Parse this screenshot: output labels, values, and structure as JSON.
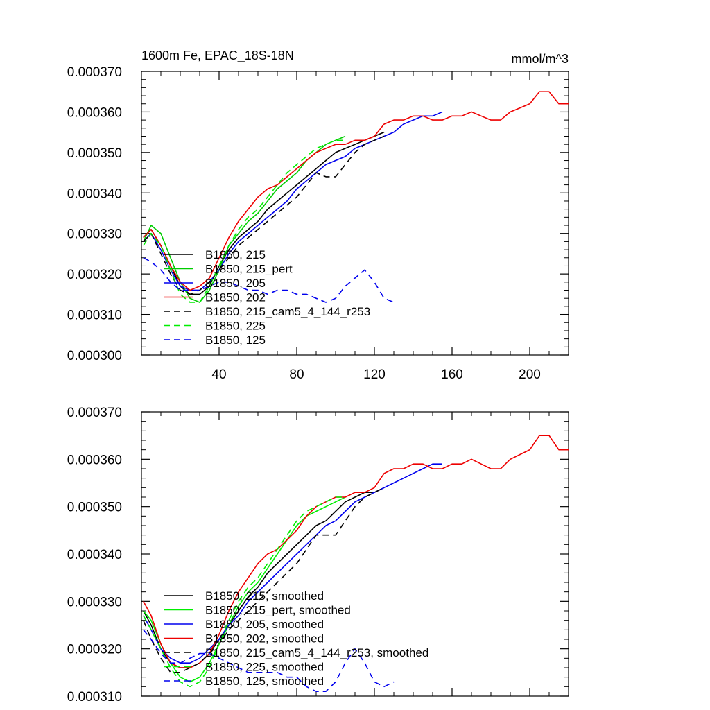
{
  "chart_data": [
    {
      "type": "line",
      "title": "1600m Fe, EPAC_18S-18N",
      "units": "mmol/m^3",
      "xlim": [
        0,
        220
      ],
      "ylim": [
        0.0003,
        0.00037
      ],
      "xticks": [
        40,
        80,
        120,
        160,
        200
      ],
      "yticks": [
        "0.000300",
        "0.000310",
        "0.000320",
        "0.000330",
        "0.000340",
        "0.000350",
        "0.000360",
        "0.000370"
      ],
      "legend_position": "bottom-left",
      "series": [
        {
          "name": "B1850, 215",
          "color": "#000000",
          "dash": "solid",
          "x": [
            1,
            5,
            10,
            15,
            20,
            25,
            30,
            35,
            40,
            45,
            50,
            55,
            60,
            65,
            70,
            75,
            80,
            85,
            90,
            95,
            100,
            105,
            110,
            115,
            120,
            125
          ],
          "y": [
            0.000329,
            0.000331,
            0.000327,
            0.000322,
            0.000317,
            0.000315,
            0.000315,
            0.000317,
            0.000322,
            0.000326,
            0.000329,
            0.000331,
            0.000333,
            0.000336,
            0.000338,
            0.00034,
            0.000342,
            0.000344,
            0.000346,
            0.000348,
            0.00035,
            0.000351,
            0.000352,
            0.000353,
            0.000354,
            0.000355
          ]
        },
        {
          "name": "B1850, 215_pert",
          "color": "#00cc00",
          "dash": "solid",
          "x": [
            1,
            5,
            10,
            15,
            20,
            25,
            30,
            35,
            40,
            45,
            50,
            55,
            60,
            65,
            70,
            75,
            80,
            85,
            90,
            95,
            100,
            105
          ],
          "y": [
            0.000328,
            0.000332,
            0.00033,
            0.000324,
            0.000318,
            0.000314,
            0.000313,
            0.000316,
            0.000321,
            0.000327,
            0.00033,
            0.000333,
            0.000335,
            0.000338,
            0.000341,
            0.000343,
            0.000345,
            0.000348,
            0.00035,
            0.000352,
            0.000353,
            0.000354
          ]
        },
        {
          "name": "B1850, 205",
          "color": "#0000ee",
          "dash": "solid",
          "x": [
            1,
            5,
            10,
            15,
            20,
            25,
            30,
            35,
            40,
            45,
            50,
            55,
            60,
            65,
            70,
            75,
            80,
            85,
            90,
            95,
            100,
            105,
            110,
            115,
            120,
            125,
            130,
            135,
            140,
            145,
            150,
            155
          ],
          "y": [
            0.000328,
            0.00033,
            0.000326,
            0.000321,
            0.000317,
            0.000316,
            0.000316,
            0.000318,
            0.000321,
            0.000325,
            0.000328,
            0.00033,
            0.000332,
            0.000334,
            0.000336,
            0.000338,
            0.000341,
            0.000343,
            0.000345,
            0.000347,
            0.000348,
            0.000349,
            0.000351,
            0.000352,
            0.000353,
            0.000354,
            0.000355,
            0.000357,
            0.000358,
            0.000359,
            0.000359,
            0.00036
          ]
        },
        {
          "name": "B1850, 202",
          "color": "#ee0000",
          "dash": "solid",
          "x": [
            1,
            5,
            10,
            15,
            20,
            25,
            30,
            35,
            40,
            45,
            50,
            55,
            60,
            65,
            70,
            75,
            80,
            85,
            90,
            95,
            100,
            105,
            110,
            115,
            120,
            125,
            130,
            135,
            140,
            145,
            150,
            155,
            160,
            165,
            170,
            175,
            180,
            185,
            190,
            195,
            200,
            205,
            210,
            215,
            220
          ],
          "y": [
            0.000329,
            0.000331,
            0.000327,
            0.000322,
            0.000318,
            0.000316,
            0.000317,
            0.000319,
            0.000324,
            0.000329,
            0.000333,
            0.000336,
            0.000339,
            0.000341,
            0.000342,
            0.000344,
            0.000346,
            0.000348,
            0.00035,
            0.000351,
            0.000352,
            0.000352,
            0.000353,
            0.000353,
            0.000354,
            0.000357,
            0.000358,
            0.000358,
            0.000359,
            0.000359,
            0.000358,
            0.000358,
            0.000359,
            0.000359,
            0.00036,
            0.000359,
            0.000358,
            0.000358,
            0.00036,
            0.000361,
            0.000362,
            0.000365,
            0.000365,
            0.000362,
            0.000362
          ]
        },
        {
          "name": "B1850, 215_cam5_4_144_r253",
          "color": "#000000",
          "dash": "dashed",
          "x": [
            1,
            5,
            10,
            15,
            20,
            25,
            30,
            35,
            40,
            45,
            50,
            55,
            60,
            65,
            70,
            75,
            80,
            85,
            90,
            95,
            100,
            105,
            110,
            115,
            120,
            125
          ],
          "y": [
            0.000328,
            0.00033,
            0.000325,
            0.00032,
            0.000316,
            0.000315,
            0.000316,
            0.000318,
            0.000321,
            0.000324,
            0.000327,
            0.000329,
            0.000331,
            0.000333,
            0.000335,
            0.000337,
            0.000339,
            0.000342,
            0.000345,
            0.000344,
            0.000344,
            0.000347,
            0.00035,
            0.000352,
            0.000353,
            0.000354
          ]
        },
        {
          "name": "B1850, 225",
          "color": "#00ee00",
          "dash": "dashed",
          "x": [
            1,
            5,
            10,
            15,
            20,
            25,
            30,
            35,
            40,
            45,
            50,
            55,
            60,
            65,
            70,
            75,
            80,
            85,
            90,
            95,
            100,
            105
          ],
          "y": [
            0.000327,
            0.00033,
            0.000327,
            0.000321,
            0.000315,
            0.000313,
            0.000313,
            0.000317,
            0.000322,
            0.000327,
            0.000331,
            0.000334,
            0.000336,
            0.000339,
            0.000342,
            0.000345,
            0.000347,
            0.000349,
            0.000351,
            0.000352,
            0.000353,
            0.000353
          ]
        },
        {
          "name": "B1850, 125",
          "color": "#0000ee",
          "dash": "dashed",
          "x": [
            1,
            5,
            10,
            15,
            20,
            25,
            30,
            35,
            40,
            45,
            50,
            55,
            60,
            65,
            70,
            75,
            80,
            85,
            90,
            95,
            100,
            105,
            110,
            115,
            120,
            125,
            130
          ],
          "y": [
            0.000324,
            0.000323,
            0.000321,
            0.000318,
            0.000316,
            0.000316,
            0.000316,
            0.000317,
            0.000318,
            0.000318,
            0.000317,
            0.000316,
            0.000316,
            0.000315,
            0.000316,
            0.000316,
            0.000315,
            0.000315,
            0.000314,
            0.000313,
            0.000314,
            0.000317,
            0.000319,
            0.000321,
            0.000318,
            0.000314,
            0.000313
          ]
        }
      ]
    },
    {
      "type": "line",
      "title": "",
      "xlim": [
        0,
        220
      ],
      "ylim": [
        0.00031,
        0.00037
      ],
      "yticks": [
        "0.000310",
        "0.000320",
        "0.000330",
        "0.000340",
        "0.000350",
        "0.000360",
        "0.000370"
      ],
      "legend_position": "bottom-left",
      "series": [
        {
          "name": "B1850, 215, smoothed",
          "color": "#000000",
          "dash": "solid",
          "x": [
            1,
            5,
            10,
            15,
            20,
            25,
            30,
            35,
            40,
            45,
            50,
            55,
            60,
            65,
            70,
            75,
            80,
            85,
            90,
            95,
            100,
            105,
            110,
            115,
            120,
            125
          ],
          "y": [
            0.000328,
            0.000325,
            0.00032,
            0.000317,
            0.000316,
            0.000316,
            0.000317,
            0.000319,
            0.000322,
            0.000325,
            0.000328,
            0.000331,
            0.000333,
            0.000336,
            0.000338,
            0.00034,
            0.000342,
            0.000344,
            0.000346,
            0.000347,
            0.000349,
            0.000351,
            0.000352,
            0.000353,
            0.000353,
            0.000354
          ]
        },
        {
          "name": "B1850, 215_pert, smoothed",
          "color": "#00ee00",
          "dash": "solid",
          "x": [
            1,
            5,
            10,
            15,
            20,
            25,
            30,
            35,
            40,
            45,
            50,
            55,
            60,
            65,
            70,
            75,
            80,
            85,
            90,
            95,
            100,
            105
          ],
          "y": [
            0.000328,
            0.000326,
            0.000321,
            0.000317,
            0.000314,
            0.000313,
            0.000314,
            0.000317,
            0.000321,
            0.000325,
            0.000329,
            0.000332,
            0.000334,
            0.000337,
            0.00034,
            0.000343,
            0.000346,
            0.000348,
            0.000349,
            0.00035,
            0.000351,
            0.000352
          ]
        },
        {
          "name": "B1850, 205, smoothed",
          "color": "#0000ee",
          "dash": "solid",
          "x": [
            1,
            5,
            10,
            15,
            20,
            25,
            30,
            35,
            40,
            45,
            50,
            55,
            60,
            65,
            70,
            75,
            80,
            85,
            90,
            95,
            100,
            105,
            110,
            115,
            120,
            125,
            130,
            135,
            140,
            145,
            150,
            155
          ],
          "y": [
            0.000327,
            0.000324,
            0.00032,
            0.000318,
            0.000317,
            0.000317,
            0.000318,
            0.00032,
            0.000322,
            0.000325,
            0.000327,
            0.00033,
            0.000332,
            0.000334,
            0.000336,
            0.000338,
            0.00034,
            0.000342,
            0.000344,
            0.000346,
            0.000347,
            0.000349,
            0.000351,
            0.000352,
            0.000353,
            0.000354,
            0.000355,
            0.000356,
            0.000357,
            0.000358,
            0.000359,
            0.000359
          ]
        },
        {
          "name": "B1850, 202, smoothed",
          "color": "#ee0000",
          "dash": "solid",
          "x": [
            1,
            5,
            10,
            15,
            20,
            25,
            30,
            35,
            40,
            45,
            50,
            55,
            60,
            65,
            70,
            75,
            80,
            85,
            90,
            95,
            100,
            105,
            110,
            115,
            120,
            125,
            130,
            135,
            140,
            145,
            150,
            155,
            160,
            165,
            170,
            175,
            180,
            185,
            190,
            195,
            200,
            205,
            210,
            215,
            220
          ],
          "y": [
            0.00033,
            0.000327,
            0.000321,
            0.000317,
            0.000316,
            0.000316,
            0.000317,
            0.000319,
            0.000323,
            0.000328,
            0.000332,
            0.000335,
            0.000338,
            0.00034,
            0.000341,
            0.000343,
            0.000345,
            0.000348,
            0.00035,
            0.000351,
            0.000352,
            0.000352,
            0.000353,
            0.000353,
            0.000354,
            0.000357,
            0.000358,
            0.000358,
            0.000359,
            0.000359,
            0.000358,
            0.000358,
            0.000359,
            0.000359,
            0.00036,
            0.000359,
            0.000358,
            0.000358,
            0.00036,
            0.000361,
            0.000362,
            0.000365,
            0.000365,
            0.000362,
            0.000362
          ]
        },
        {
          "name": "B1850, 215_cam5_4_144_r253, smoothed",
          "color": "#000000",
          "dash": "dashed",
          "x": [
            1,
            5,
            10,
            15,
            20,
            25,
            30,
            35,
            40,
            45,
            50,
            55,
            60,
            65,
            70,
            75,
            80,
            85,
            90,
            95,
            100,
            105,
            110,
            115,
            120,
            125
          ],
          "y": [
            0.000326,
            0.000322,
            0.000318,
            0.000315,
            0.000315,
            0.000316,
            0.000317,
            0.000319,
            0.000321,
            0.000324,
            0.000326,
            0.000328,
            0.00033,
            0.000332,
            0.000334,
            0.000336,
            0.000338,
            0.000341,
            0.000344,
            0.000344,
            0.000344,
            0.000347,
            0.00035,
            0.000352,
            0.000353,
            0.000354
          ]
        },
        {
          "name": "B1850, 225, smoothed",
          "color": "#00ee00",
          "dash": "dashed",
          "x": [
            1,
            5,
            10,
            15,
            20,
            25,
            30,
            35,
            40,
            45,
            50,
            55,
            60,
            65,
            70,
            75,
            80,
            85,
            90,
            95,
            100,
            105
          ],
          "y": [
            0.000327,
            0.000324,
            0.00032,
            0.000316,
            0.000313,
            0.000312,
            0.000313,
            0.000316,
            0.000321,
            0.000326,
            0.00033,
            0.000333,
            0.000335,
            0.000338,
            0.000341,
            0.000344,
            0.000347,
            0.000349,
            0.00035,
            0.000351,
            0.000352,
            0.000352
          ]
        },
        {
          "name": "B1850, 125, smoothed",
          "color": "#0000ee",
          "dash": "dashed",
          "x": [
            1,
            5,
            10,
            15,
            20,
            25,
            30,
            35,
            40,
            45,
            50,
            55,
            60,
            65,
            70,
            75,
            80,
            85,
            90,
            95,
            100,
            105,
            110,
            115,
            120,
            125,
            130
          ],
          "y": [
            0.000324,
            0.000322,
            0.000319,
            0.000317,
            0.000317,
            0.000318,
            0.000319,
            0.000319,
            0.000318,
            0.000317,
            0.000316,
            0.000315,
            0.000315,
            0.000315,
            0.000315,
            0.000314,
            0.000314,
            0.000312,
            0.000311,
            0.000311,
            0.000313,
            0.000317,
            0.00032,
            0.000317,
            0.000313,
            0.000312,
            0.000313
          ]
        }
      ]
    }
  ]
}
